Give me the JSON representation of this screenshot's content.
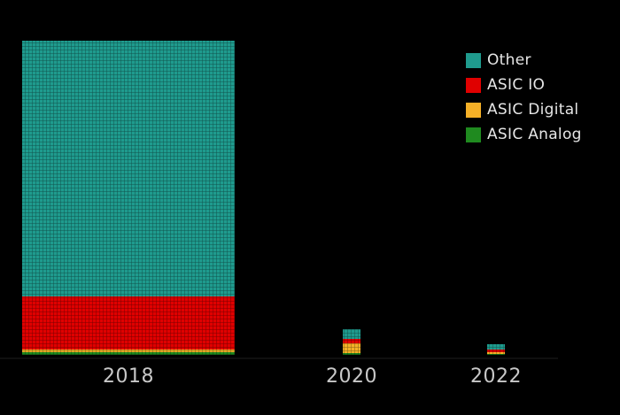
{
  "chart_data": {
    "type": "bar",
    "title": "",
    "xlabel": "",
    "ylabel": "",
    "categories": [
      "2018",
      "2020",
      "2022"
    ],
    "series": [
      {
        "name": "ASIC Analog",
        "color": "#1f8a1f",
        "values": [
          3,
          2,
          1
        ]
      },
      {
        "name": "ASIC Digital",
        "color": "#f5b027",
        "values": [
          3,
          11,
          2
        ]
      },
      {
        "name": "ASIC IO",
        "color": "#e00000",
        "values": [
          60,
          5,
          3
        ]
      },
      {
        "name": "Other",
        "color": "#1f9b8e",
        "values": [
          289,
          11,
          6
        ]
      }
    ],
    "legend": {
      "placement": "top-right",
      "items": [
        {
          "name": "Other",
          "color": "#1f9b8e"
        },
        {
          "name": "ASIC IO",
          "color": "#e00000"
        },
        {
          "name": "ASIC Digital",
          "color": "#f5b027"
        },
        {
          "name": "ASIC Analog",
          "color": "#1f8a1f"
        }
      ]
    },
    "ylim": [
      0,
      360
    ],
    "grid": false
  }
}
